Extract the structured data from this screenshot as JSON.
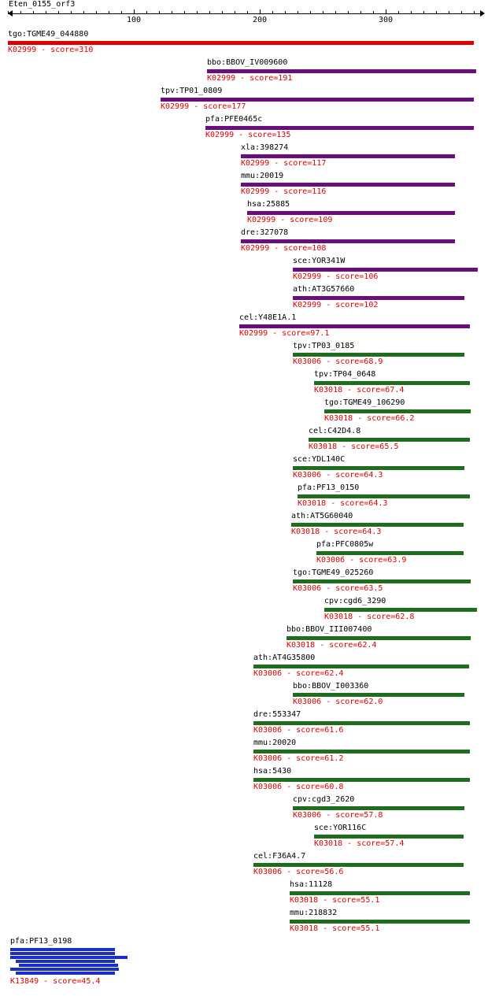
{
  "title": "Eten_0155_orf3",
  "axis": {
    "min": 0,
    "max": 370,
    "labeled_ticks": [
      {
        "value": 100,
        "label": "100"
      },
      {
        "value": 200,
        "label": "200"
      },
      {
        "value": 300,
        "label": "300"
      }
    ],
    "minor_step": 10
  },
  "colors": {
    "K02999_top": "#e00000",
    "K02999": "#6a0d7d",
    "K03006": "#1e6e1e",
    "K03018": "#1e6e1e",
    "K13849": "#1a2ec8",
    "score_text": "#e00000",
    "name_text": "#000000"
  },
  "hits": [
    {
      "name": "tgo:TGME49_044880",
      "score": "K02999 - score=310",
      "color": "#e00000",
      "start": 0,
      "end": 370
    },
    {
      "name": "bbo:BBOV_IV009600",
      "score": "K02999 - score=191",
      "color": "#6a0d7d",
      "start": 158,
      "end": 372
    },
    {
      "name": "tpv:TP01_0809",
      "score": "K02999 - score=177",
      "color": "#6a0d7d",
      "start": 121,
      "end": 370
    },
    {
      "name": "pfa:PFE0465c",
      "score": "K02999 - score=135",
      "color": "#6a0d7d",
      "start": 157,
      "end": 370
    },
    {
      "name": "xla:398274",
      "score": "K02999 - score=117",
      "color": "#6a0d7d",
      "start": 185,
      "end": 355
    },
    {
      "name": "mmu:20019",
      "score": "K02999 - score=116",
      "color": "#6a0d7d",
      "start": 185,
      "end": 355
    },
    {
      "name": "hsa:25885",
      "score": "K02999 - score=109",
      "color": "#6a0d7d",
      "start": 190,
      "end": 355
    },
    {
      "name": "dre:327078",
      "score": "K02999 - score=108",
      "color": "#6a0d7d",
      "start": 185,
      "end": 355
    },
    {
      "name": "sce:YOR341W",
      "score": "K02999 - score=106",
      "color": "#6a0d7d",
      "start": 226,
      "end": 373
    },
    {
      "name": "ath:AT3G57660",
      "score": "K02999 - score=102",
      "color": "#6a0d7d",
      "start": 226,
      "end": 362
    },
    {
      "name": "cel:Y48E1A.1",
      "score": "K02999 - score=97.1",
      "color": "#6a0d7d",
      "start": 184,
      "end": 367
    },
    {
      "name": "tpv:TP03_0185",
      "score": "K03006 - score=68.9",
      "color": "#1e6e1e",
      "start": 226,
      "end": 362
    },
    {
      "name": "tpv:TP04_0648",
      "score": "K03018 - score=67.4",
      "color": "#1e6e1e",
      "start": 243,
      "end": 367
    },
    {
      "name": "tgo:TGME49_106290",
      "score": "K03018 - score=66.2",
      "color": "#1e6e1e",
      "start": 251,
      "end": 367
    },
    {
      "name": "cel:C42D4.8",
      "score": "K03018 - score=65.5",
      "color": "#1e6e1e",
      "start": 239,
      "end": 367
    },
    {
      "name": "sce:YDL140C",
      "score": "K03006 - score=64.3",
      "color": "#1e6e1e",
      "start": 226,
      "end": 362
    },
    {
      "name": "pfa:PF13_0150",
      "score": "K03018 - score=64.3",
      "color": "#1e6e1e",
      "start": 230,
      "end": 367
    },
    {
      "name": "ath:AT5G60040",
      "score": "K03018 - score=64.3",
      "color": "#1e6e1e",
      "start": 225,
      "end": 362
    },
    {
      "name": "pfa:PFC0805w",
      "score": "K03006 - score=63.9",
      "color": "#1e6e1e",
      "start": 245,
      "end": 362
    },
    {
      "name": "tgo:TGME49_025260",
      "score": "K03006 - score=63.5",
      "color": "#1e6e1e",
      "start": 226,
      "end": 367
    },
    {
      "name": "cpv:cgd6_3290",
      "score": "K03018 - score=62.8",
      "color": "#1e6e1e",
      "start": 251,
      "end": 372
    },
    {
      "name": "bbo:BBOV_III007400",
      "score": "K03018 - score=62.4",
      "color": "#1e6e1e",
      "start": 221,
      "end": 367
    },
    {
      "name": "ath:AT4G35800",
      "score": "K03006 - score=62.4",
      "color": "#1e6e1e",
      "start": 195,
      "end": 366
    },
    {
      "name": "bbo:BBOV_I003360",
      "score": "K03006 - score=62.0",
      "color": "#1e6e1e",
      "start": 226,
      "end": 362
    },
    {
      "name": "dre:553347",
      "score": "K03006 - score=61.6",
      "color": "#1e6e1e",
      "start": 195,
      "end": 367
    },
    {
      "name": "mmu:20020",
      "score": "K03006 - score=61.2",
      "color": "#1e6e1e",
      "start": 195,
      "end": 367
    },
    {
      "name": "hsa:5430",
      "score": "K03006 - score=60.8",
      "color": "#1e6e1e",
      "start": 195,
      "end": 367
    },
    {
      "name": "cpv:cgd3_2620",
      "score": "K03006 - score=57.8",
      "color": "#1e6e1e",
      "start": 226,
      "end": 362
    },
    {
      "name": "sce:YOR116C",
      "score": "K03018 - score=57.4",
      "color": "#1e6e1e",
      "start": 243,
      "end": 362
    },
    {
      "name": "cel:F36A4.7",
      "score": "K03006 - score=56.6",
      "color": "#1e6e1e",
      "start": 195,
      "end": 362
    },
    {
      "name": "hsa:11128",
      "score": "K03018 - score=55.1",
      "color": "#1e6e1e",
      "start": 224,
      "end": 367
    },
    {
      "name": "mmu:218832",
      "score": "K03018 - score=55.1",
      "color": "#1e6e1e",
      "start": 224,
      "end": 367
    }
  ],
  "multi_hit": {
    "name": "pfa:PF13_0198",
    "score": "K13849 - score=45.4",
    "color": "#1a2ec8",
    "segments": [
      {
        "start": 2,
        "end": 85
      },
      {
        "start": 2,
        "end": 85
      },
      {
        "start": 2,
        "end": 95
      },
      {
        "start": 6,
        "end": 85
      },
      {
        "start": 9,
        "end": 88
      },
      {
        "start": 2,
        "end": 88
      },
      {
        "start": 6,
        "end": 85
      }
    ]
  }
}
